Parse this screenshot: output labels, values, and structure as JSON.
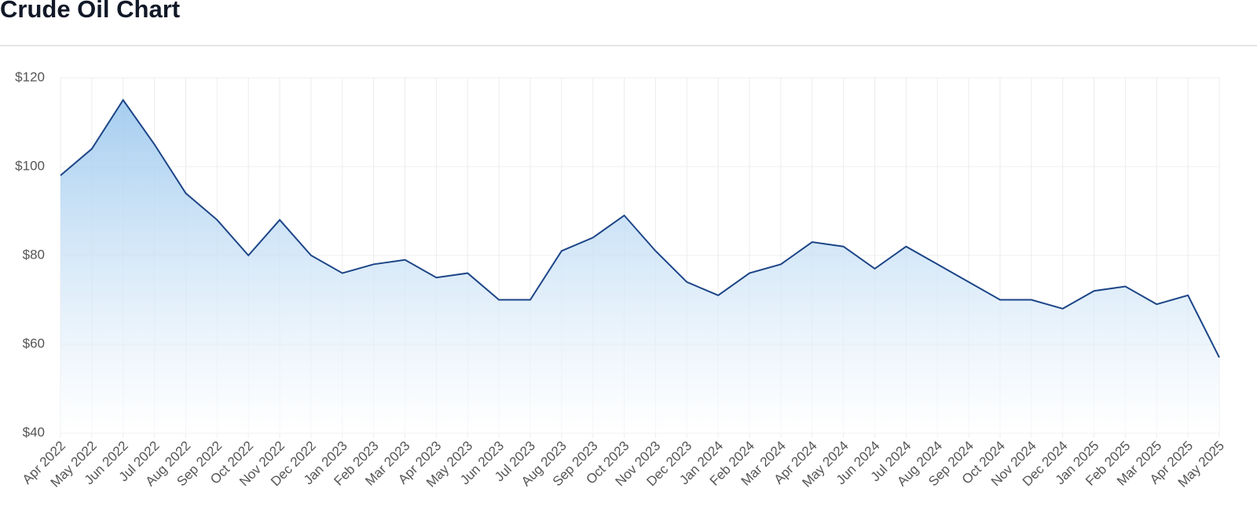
{
  "chart_data": {
    "type": "line",
    "title": "Crude Oil Chart",
    "x": [
      "Apr 2022",
      "May 2022",
      "Jun 2022",
      "Jul 2022",
      "Aug 2022",
      "Sep 2022",
      "Oct 2022",
      "Nov 2022",
      "Dec 2022",
      "Jan 2023",
      "Feb 2023",
      "Mar 2023",
      "Apr 2023",
      "May 2023",
      "Jun 2023",
      "Jul 2023",
      "Aug 2023",
      "Sep 2023",
      "Oct 2023",
      "Nov 2023",
      "Dec 2023",
      "Jan 2024",
      "Feb 2024",
      "Mar 2024",
      "Apr 2024",
      "May 2024",
      "Jun 2024",
      "Jul 2024",
      "Aug 2024",
      "Sep 2024",
      "Oct 2024",
      "Nov 2024",
      "Dec 2024",
      "Jan 2025",
      "Feb 2025",
      "Mar 2025",
      "Apr 2025",
      "May 2025"
    ],
    "values": [
      98,
      104,
      115,
      105,
      94,
      88,
      80,
      88,
      80,
      76,
      78,
      79,
      75,
      76,
      70,
      70,
      81,
      84,
      89,
      81,
      74,
      71,
      76,
      78,
      83,
      82,
      77,
      82,
      78,
      74,
      70,
      70,
      68,
      72,
      73,
      69,
      71,
      57
    ],
    "color": "#1c4587",
    "ylim": [
      40,
      120
    ],
    "yticks": [
      {
        "value": 40,
        "label": "$40"
      },
      {
        "value": 60,
        "label": "$60"
      },
      {
        "value": 80,
        "label": "$80"
      },
      {
        "value": 100,
        "label": "$100"
      },
      {
        "value": 120,
        "label": "$120"
      }
    ],
    "grid": true
  }
}
